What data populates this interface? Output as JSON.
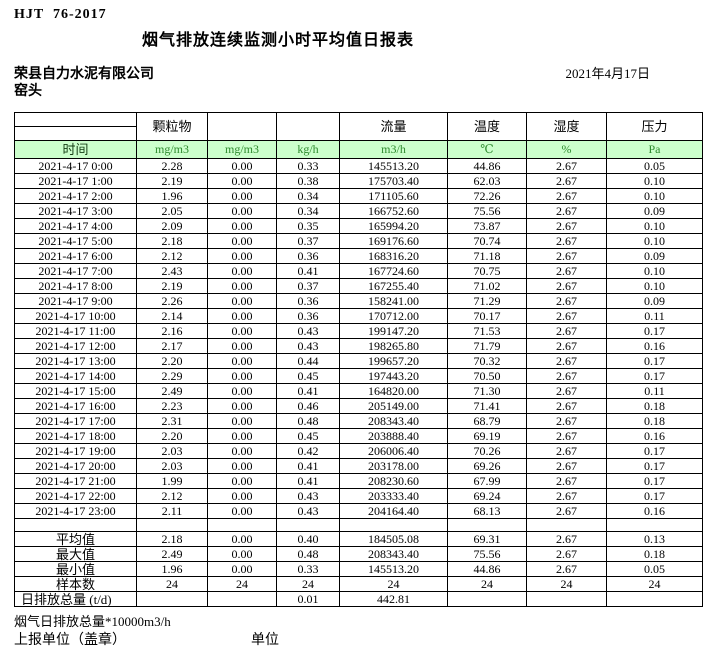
{
  "meta": {
    "standard_code": "HJT  76-2017",
    "title": "烟气排放连续监测小时平均值日报表",
    "company": "荣县自力水泥有限公司",
    "stack_name": "窑头",
    "date": "2021年4月17日"
  },
  "table": {
    "time_label": "时间",
    "group_headers": {
      "particulate": "颗粒物",
      "col3": "",
      "col4": "",
      "flow": "流量",
      "temperature": "温度",
      "humidity": "湿度",
      "pressure": "压力"
    },
    "units": [
      "mg/m3",
      "mg/m3",
      "kg/h",
      "m3/h",
      "℃",
      "%",
      "Pa"
    ],
    "rows": [
      {
        "time": "2021-4-17 0:00",
        "values": [
          "2.28",
          "0.00",
          "0.33",
          "145513.20",
          "44.86",
          "2.67",
          "0.05"
        ]
      },
      {
        "time": "2021-4-17 1:00",
        "values": [
          "2.19",
          "0.00",
          "0.38",
          "175703.40",
          "62.03",
          "2.67",
          "0.10"
        ]
      },
      {
        "time": "2021-4-17 2:00",
        "values": [
          "1.96",
          "0.00",
          "0.34",
          "171105.60",
          "72.26",
          "2.67",
          "0.10"
        ]
      },
      {
        "time": "2021-4-17 3:00",
        "values": [
          "2.05",
          "0.00",
          "0.34",
          "166752.60",
          "75.56",
          "2.67",
          "0.09"
        ]
      },
      {
        "time": "2021-4-17 4:00",
        "values": [
          "2.09",
          "0.00",
          "0.35",
          "165994.20",
          "73.87",
          "2.67",
          "0.10"
        ]
      },
      {
        "time": "2021-4-17 5:00",
        "values": [
          "2.18",
          "0.00",
          "0.37",
          "169176.60",
          "70.74",
          "2.67",
          "0.10"
        ]
      },
      {
        "time": "2021-4-17 6:00",
        "values": [
          "2.12",
          "0.00",
          "0.36",
          "168316.20",
          "71.18",
          "2.67",
          "0.09"
        ]
      },
      {
        "time": "2021-4-17 7:00",
        "values": [
          "2.43",
          "0.00",
          "0.41",
          "167724.60",
          "70.75",
          "2.67",
          "0.10"
        ]
      },
      {
        "time": "2021-4-17 8:00",
        "values": [
          "2.19",
          "0.00",
          "0.37",
          "167255.40",
          "71.02",
          "2.67",
          "0.10"
        ]
      },
      {
        "time": "2021-4-17 9:00",
        "values": [
          "2.26",
          "0.00",
          "0.36",
          "158241.00",
          "71.29",
          "2.67",
          "0.09"
        ]
      },
      {
        "time": "2021-4-17 10:00",
        "values": [
          "2.14",
          "0.00",
          "0.36",
          "170712.00",
          "70.17",
          "2.67",
          "0.11"
        ]
      },
      {
        "time": "2021-4-17 11:00",
        "values": [
          "2.16",
          "0.00",
          "0.43",
          "199147.20",
          "71.53",
          "2.67",
          "0.17"
        ]
      },
      {
        "time": "2021-4-17 12:00",
        "values": [
          "2.17",
          "0.00",
          "0.43",
          "198265.80",
          "71.79",
          "2.67",
          "0.16"
        ]
      },
      {
        "time": "2021-4-17 13:00",
        "values": [
          "2.20",
          "0.00",
          "0.44",
          "199657.20",
          "70.32",
          "2.67",
          "0.17"
        ]
      },
      {
        "time": "2021-4-17 14:00",
        "values": [
          "2.29",
          "0.00",
          "0.45",
          "197443.20",
          "70.50",
          "2.67",
          "0.17"
        ]
      },
      {
        "time": "2021-4-17 15:00",
        "values": [
          "2.49",
          "0.00",
          "0.41",
          "164820.00",
          "71.30",
          "2.67",
          "0.11"
        ]
      },
      {
        "time": "2021-4-17 16:00",
        "values": [
          "2.23",
          "0.00",
          "0.46",
          "205149.00",
          "71.41",
          "2.67",
          "0.18"
        ]
      },
      {
        "time": "2021-4-17 17:00",
        "values": [
          "2.31",
          "0.00",
          "0.48",
          "208343.40",
          "68.79",
          "2.67",
          "0.18"
        ]
      },
      {
        "time": "2021-4-17 18:00",
        "values": [
          "2.20",
          "0.00",
          "0.45",
          "203888.40",
          "69.19",
          "2.67",
          "0.16"
        ]
      },
      {
        "time": "2021-4-17 19:00",
        "values": [
          "2.03",
          "0.00",
          "0.42",
          "206006.40",
          "70.26",
          "2.67",
          "0.17"
        ]
      },
      {
        "time": "2021-4-17 20:00",
        "values": [
          "2.03",
          "0.00",
          "0.41",
          "203178.00",
          "69.26",
          "2.67",
          "0.17"
        ]
      },
      {
        "time": "2021-4-17 21:00",
        "values": [
          "1.99",
          "0.00",
          "0.41",
          "208230.60",
          "67.99",
          "2.67",
          "0.17"
        ]
      },
      {
        "time": "2021-4-17 22:00",
        "values": [
          "2.12",
          "0.00",
          "0.43",
          "203333.40",
          "69.24",
          "2.67",
          "0.17"
        ]
      },
      {
        "time": "2021-4-17 23:00",
        "values": [
          "2.11",
          "0.00",
          "0.43",
          "204164.40",
          "68.13",
          "2.67",
          "0.16"
        ]
      }
    ],
    "summary": [
      {
        "label": "平均值",
        "values": [
          "2.18",
          "0.00",
          "0.40",
          "184505.08",
          "69.31",
          "2.67",
          "0.13"
        ]
      },
      {
        "label": "最大值",
        "values": [
          "2.49",
          "0.00",
          "0.48",
          "208343.40",
          "75.56",
          "2.67",
          "0.18"
        ]
      },
      {
        "label": "最小值",
        "values": [
          "1.96",
          "0.00",
          "0.33",
          "145513.20",
          "44.86",
          "2.67",
          "0.05"
        ]
      },
      {
        "label": "样本数",
        "values": [
          "24",
          "24",
          "24",
          "24",
          "24",
          "24",
          "24"
        ]
      },
      {
        "label": "日排放总量 (t/d)",
        "values": [
          "",
          "",
          "0.01",
          "442.81",
          "",
          "",
          ""
        ]
      }
    ]
  },
  "footer": {
    "note": "烟气日排放总量*10000m3/h",
    "report_unit_label": "上报单位（盖章）",
    "unit_label": "单位"
  },
  "colors": {
    "header_bg": "#ccffcc",
    "unit_text": "#2e8b2e",
    "border": "#000000"
  }
}
